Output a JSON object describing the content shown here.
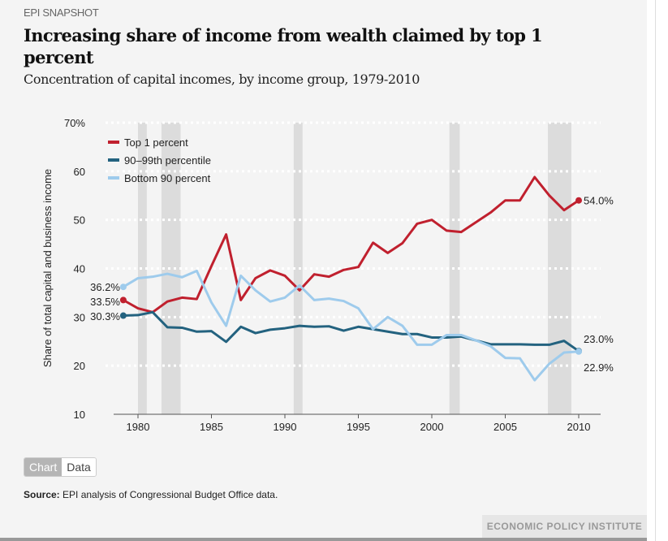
{
  "header": {
    "kicker": "EPI SNAPSHOT",
    "title": "Increasing share of income from wealth claimed by top 1 percent",
    "subtitle": "Concentration of capital incomes, by income group, 1979-2010"
  },
  "toggle": {
    "chart": "Chart",
    "data": "Data"
  },
  "footer": {
    "source_label": "Source:",
    "source_text": " EPI analysis of Congressional Budget Office data.",
    "brand": "ECONOMIC POLICY INSTITUTE"
  },
  "chart_data": {
    "type": "line",
    "ylabel": "Share of total capital and business income",
    "ylim": [
      10,
      70
    ],
    "xlim": [
      1979,
      2010
    ],
    "yticks": [
      "70%",
      "60",
      "50",
      "40",
      "30",
      "20",
      "10"
    ],
    "xticks": [
      "1980",
      "1985",
      "1990",
      "1995",
      "2000",
      "2005",
      "2010"
    ],
    "grid": true,
    "legend": "top-left",
    "recessions": [
      [
        1980.0,
        1980.6
      ],
      [
        1981.6,
        1982.9
      ],
      [
        1990.6,
        1991.2
      ],
      [
        2001.2,
        2001.9
      ],
      [
        2007.9,
        2009.5
      ]
    ],
    "x": [
      1979,
      1980,
      1981,
      1982,
      1983,
      1984,
      1985,
      1986,
      1987,
      1988,
      1989,
      1990,
      1991,
      1992,
      1993,
      1994,
      1995,
      1996,
      1997,
      1998,
      1999,
      2000,
      2001,
      2002,
      2003,
      2004,
      2005,
      2006,
      2007,
      2008,
      2009,
      2010
    ],
    "series": [
      {
        "name": "Top 1 percent",
        "color": "#c0202e",
        "start_label": "33.5%",
        "end_label": "54.0%",
        "values": [
          33.5,
          31.8,
          31.0,
          33.2,
          34.0,
          33.7,
          40.5,
          47.0,
          33.5,
          38.0,
          39.6,
          38.5,
          35.5,
          38.8,
          38.3,
          39.7,
          40.3,
          45.3,
          43.2,
          45.2,
          49.2,
          50.0,
          47.8,
          47.5,
          49.5,
          51.5,
          54.0,
          54.0,
          58.8,
          55.0,
          52.0,
          54.0
        ]
      },
      {
        "name": "90–99th percentile",
        "color": "#23627f",
        "start_label": "30.3%",
        "end_label": "23.0%",
        "values": [
          30.3,
          30.4,
          31.0,
          27.9,
          27.8,
          27.0,
          27.1,
          24.9,
          28.0,
          26.7,
          27.4,
          27.7,
          28.2,
          28.0,
          28.1,
          27.2,
          28.0,
          27.5,
          27.0,
          26.5,
          26.5,
          25.8,
          25.8,
          26.0,
          25.2,
          24.4,
          24.4,
          24.4,
          24.3,
          24.3,
          25.1,
          23.0
        ]
      },
      {
        "name": "Bottom 90 percent",
        "color": "#9ecbec",
        "start_label": "36.2%",
        "end_label": "22.9%",
        "values": [
          36.2,
          38.0,
          38.3,
          38.9,
          38.2,
          39.5,
          33.0,
          28.2,
          38.5,
          35.5,
          33.2,
          34.0,
          36.5,
          33.5,
          33.8,
          33.3,
          31.8,
          27.5,
          30.0,
          28.2,
          24.3,
          24.3,
          26.3,
          26.3,
          25.2,
          24.0,
          21.6,
          21.5,
          17.0,
          20.4,
          22.7,
          22.9
        ]
      }
    ]
  }
}
